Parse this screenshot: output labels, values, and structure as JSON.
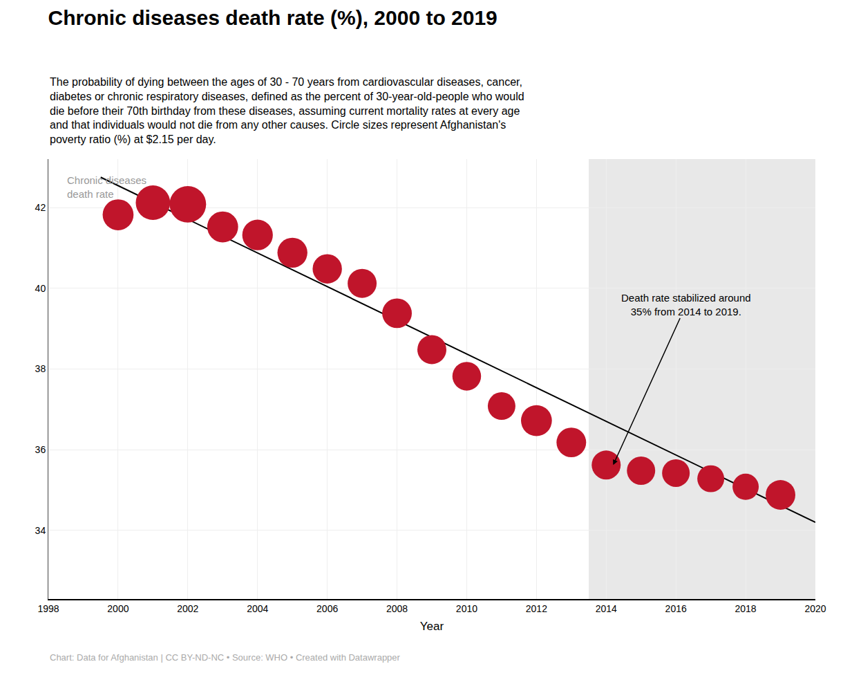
{
  "chart_data": {
    "type": "scatter",
    "title": "Chronic diseases death rate (%), 2000 to 2019",
    "subtitle": "The probability of dying between the ages of 30 - 70 years from cardiovascular diseases, cancer,\ndiabetes or chronic respiratory diseases, defined as the percent of 30-year-old-people who would\ndie before their 70th birthday from these diseases, assuming current mortality rates at every age\nand that individuals would not die from any other causes. Circle sizes represent Afghanistan's\npoverty ratio (%) at $2.15 per day.",
    "xlabel": "Year",
    "footer": "Chart: Data for Afghanistan | CC BY-ND-NC • Source: WHO • Created with Datawrapper",
    "x": [
      2000,
      2001,
      2002,
      2003,
      2004,
      2005,
      2006,
      2007,
      2008,
      2009,
      2010,
      2011,
      2012,
      2013,
      2014,
      2015,
      2016,
      2017,
      2018,
      2019
    ],
    "values": [
      41.82,
      42.12,
      42.08,
      41.52,
      41.32,
      40.88,
      40.48,
      40.12,
      39.38,
      38.48,
      37.82,
      37.08,
      36.72,
      36.18,
      35.62,
      35.48,
      35.42,
      35.28,
      35.08,
      34.88
    ],
    "sizes": [
      500,
      620,
      700,
      500,
      490,
      470,
      450,
      440,
      460,
      440,
      430,
      400,
      500,
      460,
      440,
      420,
      400,
      380,
      360,
      460
    ],
    "color": "#c0152b",
    "trend_line": {
      "x": [
        1999.5,
        2020
      ],
      "values": [
        42.75,
        34.2
      ],
      "color": "#000000"
    },
    "shade": {
      "x": [
        2013.5,
        2020
      ],
      "color": "#e8e8e8"
    },
    "series_label": {
      "text": "Chronic diseases\ndeath rate",
      "x": 1998.5,
      "y": 42.85,
      "color": "#999999"
    },
    "annotations": [
      {
        "text": "Death rate stabilized around\n35% from 2014 to 2019.",
        "x": 2016.3,
        "y": 39.6,
        "arrow_x": 2014.2,
        "arrow_y": 35.62
      }
    ],
    "xlim": [
      1998,
      2020
    ],
    "ylim": [
      32.3,
      43.2
    ],
    "xticks": [
      1998,
      2000,
      2002,
      2004,
      2006,
      2008,
      2010,
      2012,
      2014,
      2016,
      2018,
      2020
    ],
    "yticks": [
      34,
      36,
      38,
      40,
      42
    ],
    "grid": true
  }
}
